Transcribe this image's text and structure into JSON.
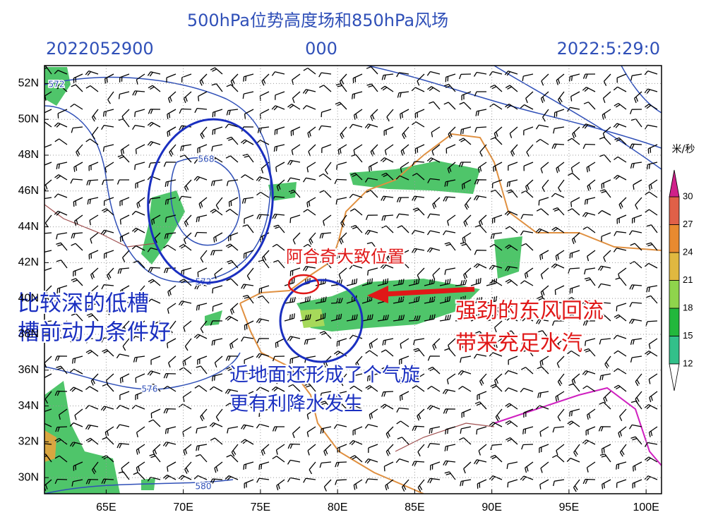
{
  "header": {
    "title": "500hPa位势高度场和850hPa风场",
    "init_time": "2022052900",
    "forecast_hour": "000",
    "valid_time": "2022:5:29:0"
  },
  "map": {
    "xlim": [
      61,
      101
    ],
    "ylim": [
      29.1,
      53
    ],
    "grid": true,
    "xticks": [
      {
        "value": 65,
        "label": "65E"
      },
      {
        "value": 70,
        "label": "70E"
      },
      {
        "value": 75,
        "label": "75E"
      },
      {
        "value": 80,
        "label": "80E"
      },
      {
        "value": 85,
        "label": "85E"
      },
      {
        "value": 90,
        "label": "90E"
      },
      {
        "value": 95,
        "label": "95E"
      },
      {
        "value": 100,
        "label": "100E"
      }
    ],
    "yticks": [
      {
        "value": 30,
        "label": "30N"
      },
      {
        "value": 32,
        "label": "32N"
      },
      {
        "value": 34,
        "label": "34N"
      },
      {
        "value": 36,
        "label": "36N"
      },
      {
        "value": 38,
        "label": "38N"
      },
      {
        "value": 40,
        "label": "40N"
      },
      {
        "value": 42,
        "label": "42N"
      },
      {
        "value": 44,
        "label": "44N"
      },
      {
        "value": 46,
        "label": "46N"
      },
      {
        "value": 48,
        "label": "48N"
      },
      {
        "value": 50,
        "label": "50N"
      },
      {
        "value": 52,
        "label": "52N"
      }
    ],
    "contour_labels": [
      572,
      568,
      572,
      576,
      580
    ]
  },
  "colorbar": {
    "unit": "米/秒",
    "levels": [
      12,
      15,
      18,
      21,
      24,
      27,
      30
    ],
    "colors": [
      "#33c08a",
      "#22b83c",
      "#8fd44c",
      "#e0b840",
      "#e88a30",
      "#e06048"
    ],
    "over_color": "#d0208a",
    "under_color": "#ffffff"
  },
  "annotations": {
    "location": "阿合奇大致位置",
    "trough": [
      "比较深的低槽",
      "槽前动力条件好"
    ],
    "easterly": [
      "强劲的东风回流",
      "带来充足水汽"
    ],
    "cyclone": [
      "近地面还形成了个气旋",
      "更有利降水发生"
    ]
  }
}
